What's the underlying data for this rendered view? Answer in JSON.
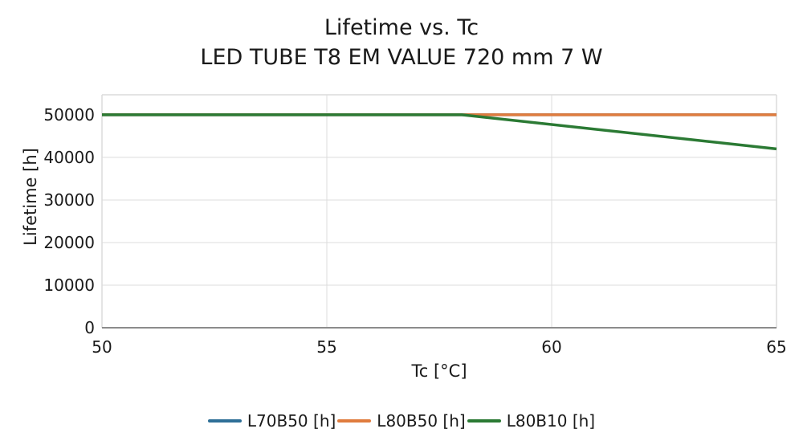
{
  "chart_data": {
    "type": "line",
    "title": "Lifetime vs. Tc",
    "subtitle": "LED TUBE T8 EM VALUE 720 mm 7 W",
    "xlabel": "Tc [°C]",
    "ylabel": "Lifetime [h]",
    "xlim": [
      50,
      65
    ],
    "ylim": [
      0,
      54700
    ],
    "x_ticks": [
      50,
      55,
      60,
      65
    ],
    "y_ticks": [
      0,
      10000,
      20000,
      30000,
      40000,
      50000
    ],
    "grid": {
      "show": true,
      "vertical_gridlines_at": [
        55,
        60
      ],
      "gridline_color": "#dcdcdc",
      "border_color": "#dcdcdc",
      "axis_line_color": "#8c8c8c"
    },
    "legend_position": "bottom",
    "series": [
      {
        "name": "L70B50 [h]",
        "color": "#2e6f97",
        "points": [
          [
            50,
            50000
          ],
          [
            65,
            50000
          ]
        ]
      },
      {
        "name": "L80B50 [h]",
        "color": "#e07c3e",
        "points": [
          [
            50,
            50000
          ],
          [
            65,
            50000
          ]
        ]
      },
      {
        "name": "L80B10 [h]",
        "color": "#2b7a34",
        "points": [
          [
            50,
            50000
          ],
          [
            58,
            50000
          ],
          [
            65,
            42000
          ]
        ]
      }
    ],
    "text_color": "#1a1a1a"
  }
}
